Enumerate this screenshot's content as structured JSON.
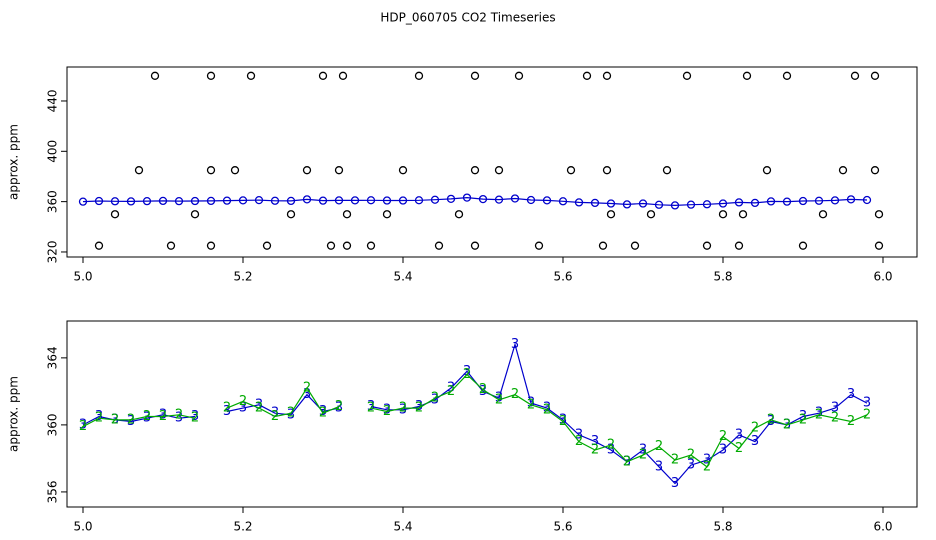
{
  "chart_data": [
    {
      "type": "scatter",
      "title": "HDP_060705  CO2 Timeseries",
      "ylabel": "approx. ppm",
      "x": [
        5.0,
        5.02,
        5.04,
        5.06,
        5.08,
        5.1,
        5.12,
        5.14,
        5.16,
        5.18,
        5.2,
        5.22,
        5.24,
        5.26,
        5.28,
        5.3,
        5.32,
        5.34,
        5.36,
        5.38,
        5.4,
        5.42,
        5.44,
        5.46,
        5.48,
        5.5,
        5.52,
        5.54,
        5.56,
        5.58,
        5.6,
        5.62,
        5.64,
        5.66,
        5.68,
        5.7,
        5.72,
        5.74,
        5.76,
        5.78,
        5.8,
        5.82,
        5.84,
        5.86,
        5.88,
        5.9,
        5.92,
        5.94,
        5.96,
        5.98
      ],
      "series": [
        {
          "color": "#0000cc",
          "line": true,
          "values": [
            360.0,
            360.5,
            360.3,
            360.2,
            360.4,
            360.6,
            360.4,
            360.5,
            360.6,
            360.8,
            361.0,
            361.2,
            360.7,
            360.6,
            361.8,
            360.8,
            361.0,
            361.0,
            361.1,
            360.9,
            360.9,
            361.1,
            361.5,
            362.2,
            363.2,
            362.0,
            361.6,
            362.5,
            361.3,
            361.0,
            360.3,
            359.4,
            359.0,
            358.5,
            357.8,
            358.5,
            357.5,
            357.0,
            357.6,
            357.9,
            358.5,
            359.4,
            359.0,
            360.2,
            360.0,
            360.5,
            360.7,
            361.0,
            361.8,
            361.3
          ]
        },
        {
          "color": "#000000",
          "line": false,
          "x": [
            5.02,
            5.04,
            5.07,
            5.09,
            5.11,
            5.14,
            5.16,
            5.16,
            5.16,
            5.19,
            5.21,
            5.23,
            5.26,
            5.28,
            5.3,
            5.31,
            5.32,
            5.325,
            5.33,
            5.33,
            5.36,
            5.38,
            5.4,
            5.42,
            5.445,
            5.47,
            5.49,
            5.49,
            5.49,
            5.52,
            5.545,
            5.57,
            5.61,
            5.63,
            5.65,
            5.655,
            5.655,
            5.66,
            5.69,
            5.71,
            5.73,
            5.755,
            5.78,
            5.8,
            5.82,
            5.825,
            5.83,
            5.855,
            5.88,
            5.9,
            5.925,
            5.95,
            5.965,
            5.99,
            5.99,
            5.995,
            5.995
          ],
          "values": [
            325,
            350,
            385,
            460,
            325,
            350,
            325,
            385,
            460,
            385,
            460,
            325,
            350,
            385,
            460,
            325,
            385,
            460,
            350,
            325,
            325,
            350,
            385,
            460,
            325,
            350,
            325,
            385,
            460,
            385,
            460,
            325,
            385,
            460,
            325,
            385,
            460,
            350,
            325,
            350,
            385,
            460,
            325,
            350,
            325,
            350,
            460,
            385,
            460,
            325,
            350,
            385,
            460,
            460,
            385,
            350,
            325
          ]
        }
      ],
      "xlim": [
        4.98,
        6.0425
      ],
      "ylim": [
        316,
        467
      ],
      "xticks": [
        {
          "value": 5,
          "label": "5.0"
        },
        5.2,
        5.4,
        5.6,
        5.8,
        {
          "value": 6,
          "label": "6.0"
        }
      ],
      "yticks": [
        320,
        360,
        400,
        440
      ]
    },
    {
      "type": "line",
      "ylabel": "approx. ppm",
      "x": [
        5.0,
        5.02,
        5.04,
        5.06,
        5.08,
        5.1,
        5.12,
        5.14,
        5.16,
        5.18,
        5.2,
        5.22,
        5.24,
        5.26,
        5.28,
        5.3,
        5.32,
        5.34,
        5.36,
        5.38,
        5.4,
        5.42,
        5.44,
        5.46,
        5.48,
        5.5,
        5.52,
        5.54,
        5.56,
        5.58,
        5.6,
        5.62,
        5.64,
        5.66,
        5.68,
        5.7,
        5.72,
        5.74,
        5.76,
        5.78,
        5.8,
        5.82,
        5.84,
        5.86,
        5.88,
        5.9,
        5.92,
        5.94,
        5.96,
        5.98
      ],
      "series": [
        {
          "color": "#0000cc",
          "line": true,
          "marker": "3",
          "values": [
            360.0,
            360.5,
            360.3,
            360.2,
            360.4,
            360.6,
            360.4,
            360.5,
            null,
            360.8,
            361.0,
            361.2,
            360.7,
            360.6,
            361.8,
            360.8,
            361.0,
            null,
            361.1,
            360.9,
            360.9,
            361.1,
            361.5,
            362.2,
            363.2,
            362.0,
            361.6,
            364.8,
            361.3,
            361.0,
            360.3,
            359.4,
            359.0,
            358.5,
            357.8,
            358.5,
            357.5,
            356.5,
            357.6,
            357.9,
            358.5,
            359.4,
            359.0,
            360.2,
            360.0,
            360.5,
            360.7,
            361.0,
            361.8,
            361.3
          ]
        },
        {
          "color": "#00aa00",
          "line": true,
          "marker": "2",
          "values": [
            359.9,
            360.4,
            360.3,
            360.3,
            360.5,
            360.5,
            360.6,
            360.4,
            null,
            361.0,
            361.4,
            361.0,
            360.5,
            360.7,
            362.2,
            360.7,
            361.1,
            null,
            361.0,
            360.8,
            361.0,
            361.0,
            361.6,
            362.0,
            363.0,
            362.1,
            361.5,
            361.8,
            361.2,
            360.9,
            360.2,
            359.0,
            358.5,
            358.8,
            357.8,
            358.2,
            358.7,
            357.9,
            358.2,
            357.5,
            359.3,
            358.6,
            359.8,
            360.3,
            360.0,
            360.3,
            360.6,
            360.4,
            360.2,
            360.6
          ]
        }
      ],
      "xlim": [
        4.98,
        6.0425
      ],
      "ylim": [
        355.1,
        366.2
      ],
      "xticks": [
        {
          "value": 5,
          "label": "5.0"
        },
        5.2,
        5.4,
        5.6,
        5.8,
        {
          "value": 6,
          "label": "6.0"
        }
      ],
      "yticks": [
        356,
        360,
        364
      ]
    }
  ]
}
